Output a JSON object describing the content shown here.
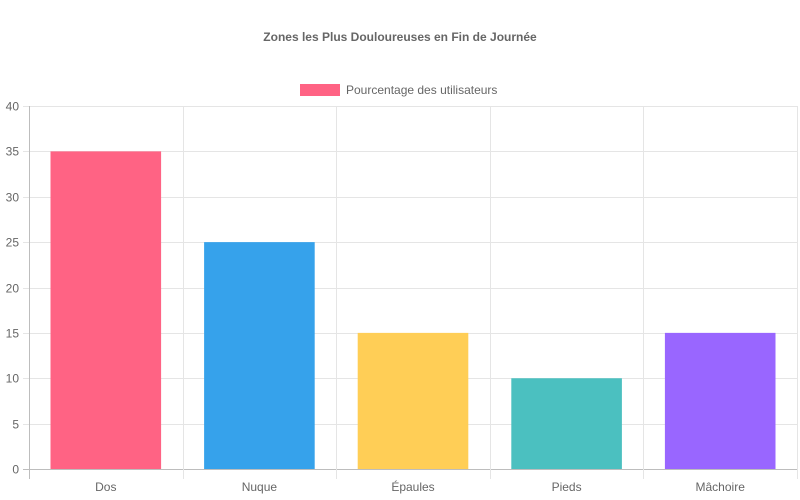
{
  "chart_data": {
    "type": "bar",
    "title": "Zones les Plus Douloureuses en Fin de Journée",
    "xlabel": "",
    "ylabel": "",
    "categories": [
      "Dos",
      "Nuque",
      "Épaules",
      "Pieds",
      "Mâchoire"
    ],
    "series": [
      {
        "name": "Pourcentage des utilisateurs",
        "values": [
          35,
          25,
          15,
          10,
          15
        ],
        "colors": [
          "#ff6384",
          "#36a2eb",
          "#ffce56",
          "#4bc0c0",
          "#9966ff"
        ]
      }
    ],
    "ylim": [
      0,
      40
    ],
    "yticks": [
      0,
      5,
      10,
      15,
      20,
      25,
      30,
      35,
      40
    ],
    "grid": true,
    "legend_position": "top"
  }
}
